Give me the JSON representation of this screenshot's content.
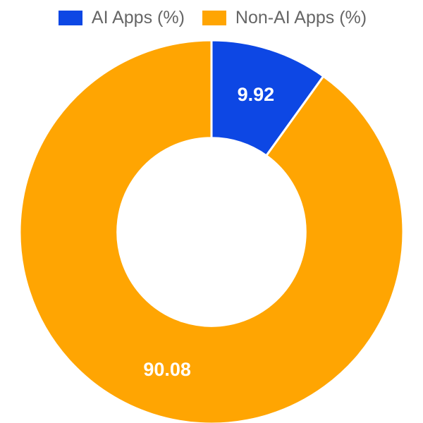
{
  "chart_data": {
    "type": "pie",
    "subtype": "doughnut",
    "title": "",
    "legend_position": "top",
    "direction": "clockwise",
    "start_angle_deg": -90,
    "cutout_ratio": 0.49,
    "border_color": "#ffffff",
    "data_label_color": "#ffffff",
    "segments": [
      {
        "label": "AI Apps (%)",
        "value": 9.92,
        "data_label": "9.92",
        "color": "#0d47e4"
      },
      {
        "label": "Non-AI Apps (%)",
        "value": 90.08,
        "data_label": "90.08",
        "color": "#ffa502"
      }
    ]
  }
}
